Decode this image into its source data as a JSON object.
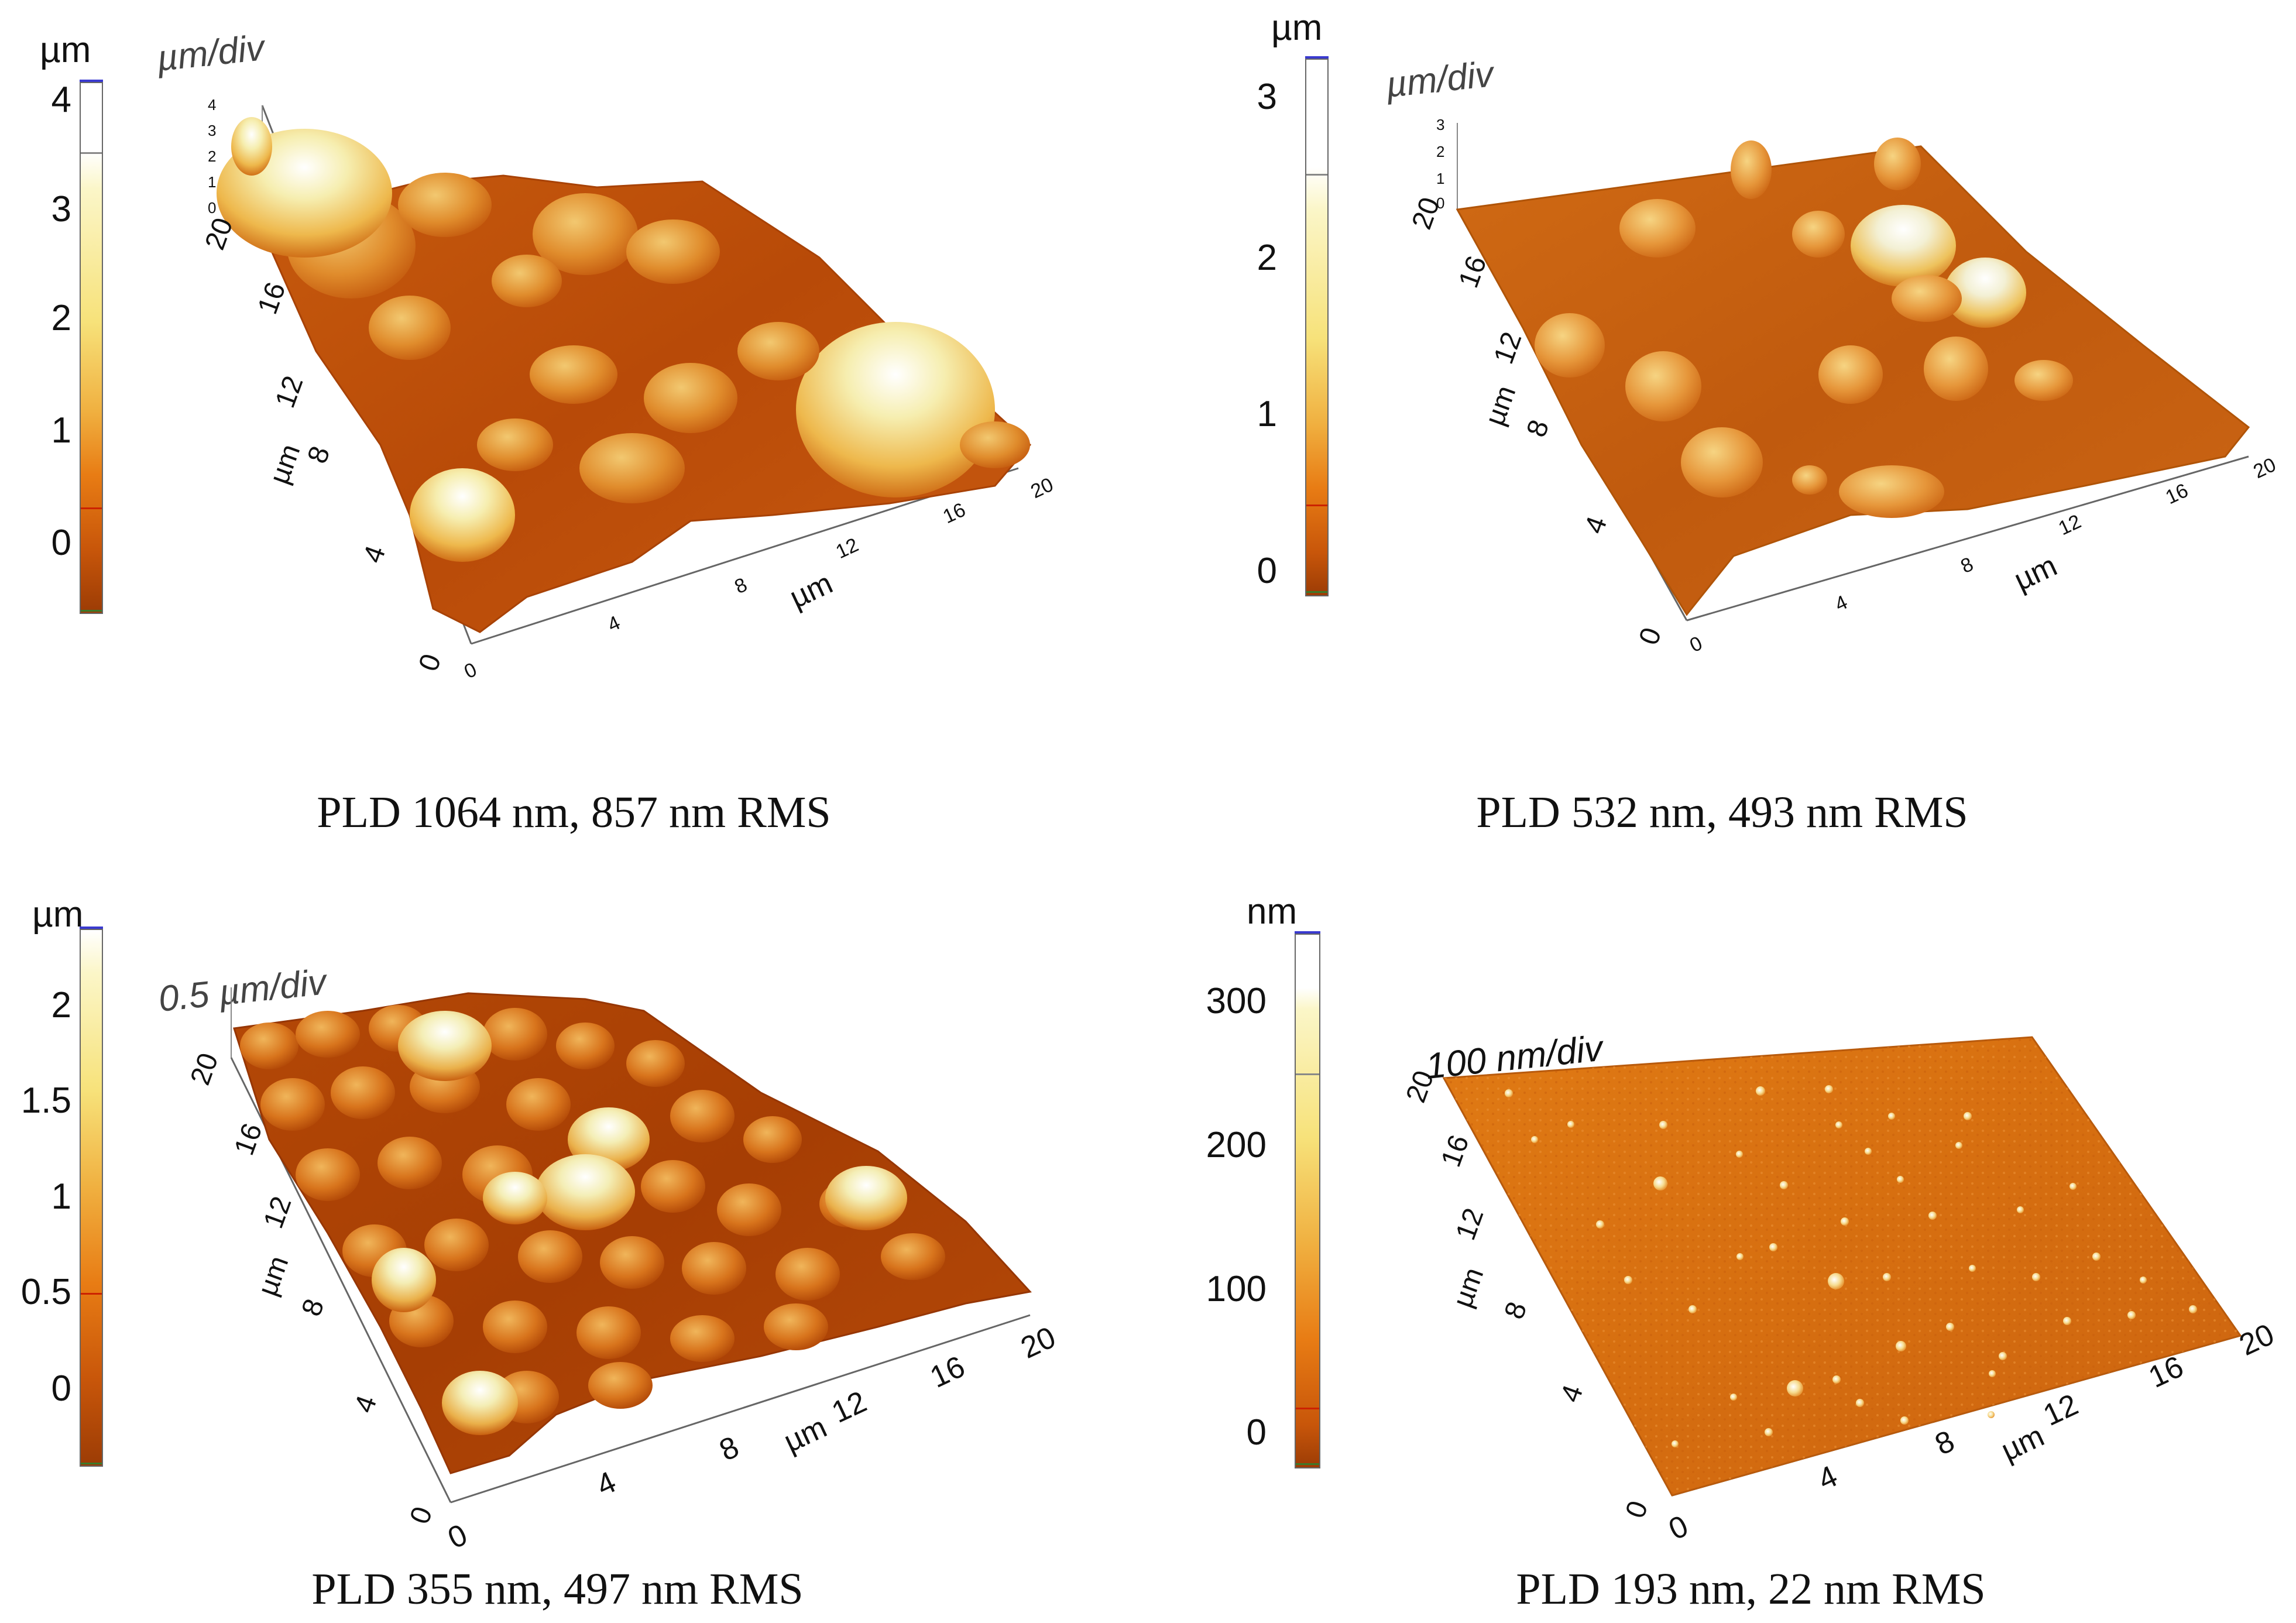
{
  "panels": [
    {
      "id": "pld1064",
      "caption": "PLD 1064 nm, 857 nm RMS",
      "colorbar": {
        "unit": "µm",
        "ticks": [
          "4",
          "3",
          "2",
          "1",
          "0"
        ]
      },
      "z_scale_label": "µm/div",
      "z_ticks": [
        "4",
        "3",
        "2",
        "1",
        "0"
      ],
      "y_axis": {
        "label": "µm",
        "ticks": [
          "20",
          "16",
          "12",
          "8",
          "4",
          "0"
        ]
      },
      "x_axis": {
        "label": "µm",
        "ticks": [
          "0",
          "4",
          "8",
          "12",
          "16",
          "20"
        ]
      }
    },
    {
      "id": "pld532",
      "caption": "PLD 532 nm, 493 nm RMS",
      "colorbar": {
        "unit": "µm",
        "ticks": [
          "3",
          "2",
          "1",
          "0"
        ]
      },
      "z_scale_label": "µm/div",
      "z_ticks": [
        "3",
        "2",
        "1",
        "0"
      ],
      "y_axis": {
        "label": "µm",
        "ticks": [
          "20",
          "16",
          "12",
          "8",
          "4",
          "0"
        ]
      },
      "x_axis": {
        "label": "µm",
        "ticks": [
          "0",
          "4",
          "8",
          "12",
          "16",
          "20"
        ]
      }
    },
    {
      "id": "pld355",
      "caption": "PLD 355 nm, 497 nm RMS",
      "colorbar": {
        "unit": "µm",
        "ticks": [
          "2",
          "1.5",
          "1",
          "0.5",
          "0"
        ]
      },
      "z_scale_label": "0.5 µm/div",
      "y_axis": {
        "label": "µm",
        "ticks": [
          "20",
          "16",
          "12",
          "8",
          "4",
          "0"
        ]
      },
      "x_axis": {
        "label": "µm",
        "ticks": [
          "0",
          "4",
          "8",
          "12",
          "16",
          "20"
        ]
      }
    },
    {
      "id": "pld193",
      "caption": "PLD 193 nm, 22 nm RMS",
      "colorbar": {
        "unit": "nm",
        "ticks": [
          "300",
          "200",
          "100",
          "0"
        ]
      },
      "z_scale_label": "100 nm/div",
      "y_axis": {
        "label": "µm",
        "ticks": [
          "20",
          "16",
          "12",
          "8",
          "4",
          "0"
        ]
      },
      "x_axis": {
        "label": "µm",
        "ticks": [
          "0",
          "4",
          "8",
          "12",
          "16",
          "20"
        ]
      }
    }
  ],
  "colors": {
    "surface_low": "#b84a08",
    "surface_mid": "#e0801c",
    "surface_high": "#f6e28a",
    "surface_peak": "#f4f4f4",
    "colorbar_marker": "#cc2200"
  }
}
